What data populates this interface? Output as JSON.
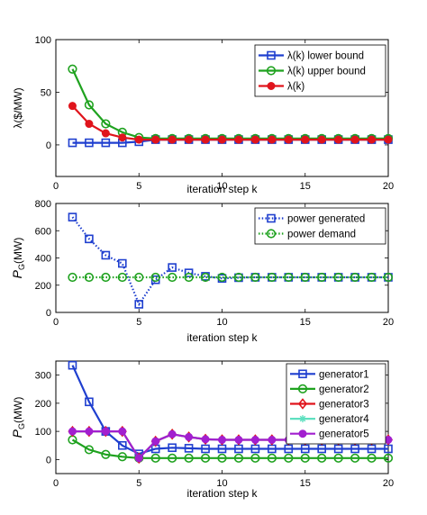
{
  "chart_data": [
    {
      "type": "line",
      "xlabel": "iteration step k",
      "ylabel": "λ($/MW)",
      "xlim": [
        0,
        20
      ],
      "ylim": [
        -30,
        100
      ],
      "xticks": [
        0,
        5,
        10,
        15,
        20
      ],
      "yticks": [
        0,
        50,
        100
      ],
      "legend_position": "top-right",
      "x": [
        1,
        2,
        3,
        4,
        5,
        6,
        7,
        8,
        9,
        10,
        11,
        12,
        13,
        14,
        15,
        16,
        17,
        18,
        19,
        20
      ],
      "series": [
        {
          "name": "λ(k) lower bound",
          "color": "#1f3fcf",
          "marker": "square",
          "line": "solid",
          "values": [
            2,
            2,
            2,
            2,
            3,
            5,
            5,
            5,
            5,
            5,
            5,
            5,
            5,
            5,
            5,
            5,
            5,
            5,
            5,
            5
          ]
        },
        {
          "name": "λ(k) upper bound",
          "color": "#1fa21f",
          "marker": "circle",
          "line": "solid",
          "values": [
            72,
            38,
            20,
            12,
            7,
            6,
            6,
            6,
            6,
            6,
            6,
            6,
            6,
            6,
            6,
            6,
            6,
            6,
            6,
            6
          ]
        },
        {
          "name": "λ(k)",
          "color": "#e0141c",
          "marker": "dot",
          "line": "solid",
          "values": [
            37,
            20,
            11,
            7,
            5,
            5,
            5,
            5,
            5,
            5,
            5,
            5,
            5,
            5,
            5,
            5,
            5,
            5,
            5,
            5
          ]
        }
      ]
    },
    {
      "type": "line",
      "xlabel": "iteration step k",
      "ylabel": "P_G(MW)",
      "ylabel_main": "P",
      "ylabel_sub": "G",
      "ylabel_rest": "(MW)",
      "xlim": [
        0,
        20
      ],
      "ylim": [
        0,
        800
      ],
      "xticks": [
        0,
        5,
        10,
        15,
        20
      ],
      "yticks": [
        0,
        200,
        400,
        600,
        800
      ],
      "legend_position": "top-right",
      "x": [
        1,
        2,
        3,
        4,
        5,
        6,
        7,
        8,
        9,
        10,
        11,
        12,
        13,
        14,
        15,
        16,
        17,
        18,
        19,
        20
      ],
      "series": [
        {
          "name": "power generated",
          "color": "#1f3fcf",
          "marker": "square",
          "line": "dotted",
          "values": [
            700,
            540,
            420,
            360,
            60,
            240,
            330,
            290,
            265,
            250,
            255,
            258,
            258,
            258,
            258,
            258,
            258,
            258,
            258,
            258
          ]
        },
        {
          "name": "power demand",
          "color": "#1fa21f",
          "marker": "circle",
          "line": "dotted",
          "values": [
            258,
            258,
            258,
            258,
            258,
            258,
            258,
            258,
            258,
            258,
            258,
            258,
            258,
            258,
            258,
            258,
            258,
            258,
            258,
            258
          ]
        }
      ]
    },
    {
      "type": "line",
      "xlabel": "iteration step k",
      "ylabel": "P_G(MW)",
      "ylabel_main": "P",
      "ylabel_sub": "G",
      "ylabel_rest": "(MW)",
      "xlim": [
        0,
        20
      ],
      "ylim": [
        -50,
        350
      ],
      "xticks": [
        0,
        5,
        10,
        15,
        20
      ],
      "yticks": [
        0,
        100,
        200,
        300
      ],
      "legend_position": "top-right",
      "x": [
        1,
        2,
        3,
        4,
        5,
        6,
        7,
        8,
        9,
        10,
        11,
        12,
        13,
        14,
        15,
        16,
        17,
        18,
        19,
        20
      ],
      "series": [
        {
          "name": "generator1",
          "color": "#1f3fcf",
          "marker": "square",
          "line": "solid",
          "values": [
            335,
            205,
            100,
            50,
            20,
            38,
            42,
            40,
            38,
            38,
            38,
            38,
            38,
            38,
            38,
            38,
            38,
            38,
            38,
            38
          ]
        },
        {
          "name": "generator2",
          "color": "#1fa21f",
          "marker": "circle",
          "line": "solid",
          "values": [
            70,
            35,
            18,
            10,
            5,
            5,
            5,
            5,
            5,
            5,
            5,
            5,
            5,
            5,
            5,
            5,
            5,
            5,
            5,
            5
          ]
        },
        {
          "name": "generator3",
          "color": "#e0141c",
          "marker": "diamond",
          "line": "solid",
          "values": [
            100,
            100,
            100,
            100,
            5,
            65,
            90,
            80,
            72,
            70,
            70,
            70,
            70,
            70,
            70,
            70,
            70,
            70,
            70,
            70
          ]
        },
        {
          "name": "generator4",
          "color": "#5fe0c0",
          "marker": "asterisk",
          "line": "solid",
          "values": [
            100,
            100,
            100,
            100,
            5,
            65,
            90,
            80,
            72,
            70,
            70,
            70,
            70,
            70,
            70,
            70,
            70,
            70,
            70,
            70
          ]
        },
        {
          "name": "generator5",
          "color": "#a21fcf",
          "marker": "dot",
          "line": "solid",
          "values": [
            100,
            100,
            100,
            100,
            5,
            65,
            90,
            80,
            72,
            70,
            70,
            70,
            70,
            70,
            70,
            70,
            70,
            70,
            70,
            70
          ]
        }
      ]
    }
  ]
}
